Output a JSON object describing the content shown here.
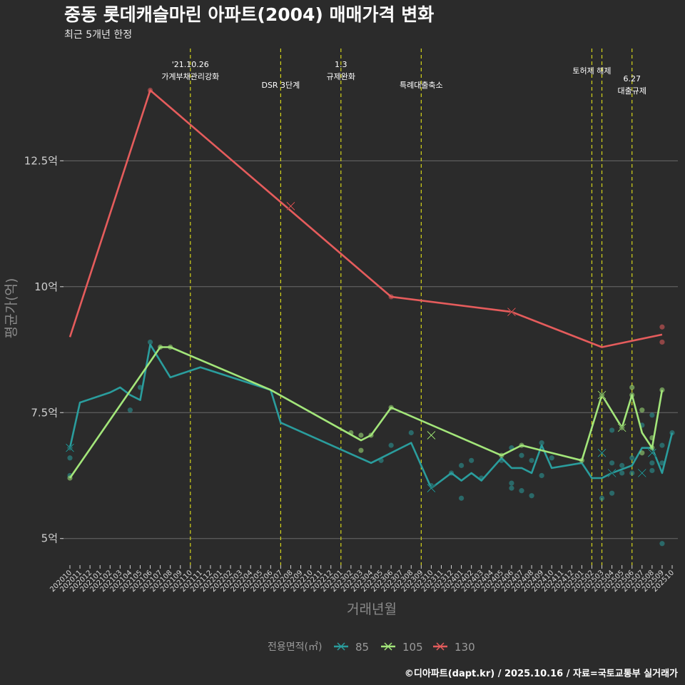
{
  "chart_data": {
    "type": "line",
    "title": "중동 롯데캐슬마린 아파트(2004) 매매가격 변화",
    "subtitle": "최근 5개년 한정",
    "xlabel": "거래년월",
    "ylabel": "평균가(억)",
    "ylim": [
      4.5,
      14.8
    ],
    "yticks": [
      {
        "value": 5,
        "label": "5억"
      },
      {
        "value": 7.5,
        "label": "7.5억"
      },
      {
        "value": 10,
        "label": "10억"
      },
      {
        "value": 12.5,
        "label": "12.5억"
      }
    ],
    "grid": true,
    "categories": [
      "202010",
      "202011",
      "202012",
      "202101",
      "202102",
      "202103",
      "202104",
      "202105",
      "202106",
      "202107",
      "202108",
      "202109",
      "202110",
      "202111",
      "202112",
      "202201",
      "202202",
      "202203",
      "202204",
      "202205",
      "202206",
      "202207",
      "202208",
      "202209",
      "202210",
      "202211",
      "202212",
      "202301",
      "202302",
      "202303",
      "202304",
      "202305",
      "202306",
      "202307",
      "202308",
      "202309",
      "202310",
      "202311",
      "202312",
      "202401",
      "202402",
      "202403",
      "202404",
      "202405",
      "202406",
      "202407",
      "202408",
      "202409",
      "202410",
      "202411",
      "202412",
      "202501",
      "202502",
      "202503",
      "202504",
      "202505",
      "202506",
      "202507",
      "202508",
      "202509",
      "202510"
    ],
    "events": [
      {
        "x": "202110",
        "label_lines": [
          "'21.10.26",
          "가계부채관리강화"
        ]
      },
      {
        "x": "202207",
        "label_lines": [
          "DSR 3단계"
        ]
      },
      {
        "x": "202301",
        "label_lines": [
          "1.3",
          "규제완화"
        ]
      },
      {
        "x": "202309",
        "label_lines": [
          "특례대출축소"
        ]
      },
      {
        "x": "202502",
        "label_lines": [
          "토허제 해제"
        ]
      },
      {
        "x": "202503",
        "label_lines": []
      },
      {
        "x": "202506",
        "label_lines": [
          "6.27",
          "대출규제"
        ]
      }
    ],
    "series": [
      {
        "name": "85",
        "color": "#2a9d9d",
        "line": [
          [
            "202010",
            6.8
          ],
          [
            "202011",
            7.7
          ],
          [
            "202102",
            7.9
          ],
          [
            "202103",
            8.0
          ],
          [
            "202104",
            7.85
          ],
          [
            "202105",
            7.75
          ],
          [
            "202106",
            8.85
          ],
          [
            "202108",
            8.2
          ],
          [
            "202111",
            8.4
          ],
          [
            "202206",
            7.95
          ],
          [
            "202207",
            7.3
          ],
          [
            "202304",
            6.5
          ],
          [
            "202305",
            6.6
          ],
          [
            "202308",
            6.9
          ],
          [
            "202309",
            6.45
          ],
          [
            "202310",
            6.0
          ],
          [
            "202312",
            6.3
          ],
          [
            "202401",
            6.15
          ],
          [
            "202402",
            6.3
          ],
          [
            "202403",
            6.15
          ],
          [
            "202405",
            6.6
          ],
          [
            "202406",
            6.4
          ],
          [
            "202407",
            6.4
          ],
          [
            "202408",
            6.3
          ],
          [
            "202409",
            6.85
          ],
          [
            "202410",
            6.4
          ],
          [
            "202501",
            6.5
          ],
          [
            "202502",
            6.2
          ],
          [
            "202503",
            6.2
          ],
          [
            "202504",
            6.3
          ],
          [
            "202506",
            6.45
          ],
          [
            "202507",
            6.8
          ],
          [
            "202508",
            6.8
          ],
          [
            "202509",
            6.3
          ],
          [
            "202510",
            7.1
          ]
        ],
        "points": [
          [
            "202010",
            6.6
          ],
          [
            "202010",
            6.25
          ],
          [
            "202010",
            6.8
          ],
          [
            "202104",
            7.55
          ],
          [
            "202105",
            8.0
          ],
          [
            "202106",
            8.9
          ],
          [
            "202305",
            6.55
          ],
          [
            "202306",
            6.85
          ],
          [
            "202308",
            7.1
          ],
          [
            "202310",
            6.05
          ],
          [
            "202312",
            6.3
          ],
          [
            "202401",
            5.8
          ],
          [
            "202401",
            6.45
          ],
          [
            "202402",
            6.55
          ],
          [
            "202403",
            6.2
          ],
          [
            "202405",
            6.55
          ],
          [
            "202406",
            6.0
          ],
          [
            "202406",
            6.1
          ],
          [
            "202406",
            6.8
          ],
          [
            "202407",
            6.65
          ],
          [
            "202407",
            5.95
          ],
          [
            "202408",
            6.55
          ],
          [
            "202408",
            5.85
          ],
          [
            "202409",
            6.9
          ],
          [
            "202409",
            6.25
          ],
          [
            "202410",
            6.6
          ],
          [
            "202503",
            5.8
          ],
          [
            "202504",
            7.15
          ],
          [
            "202504",
            5.9
          ],
          [
            "202504",
            6.5
          ],
          [
            "202505",
            6.45
          ],
          [
            "202505",
            6.3
          ],
          [
            "202506",
            6.3
          ],
          [
            "202506",
            6.6
          ],
          [
            "202507",
            7.25
          ],
          [
            "202508",
            7.45
          ],
          [
            "202508",
            6.5
          ],
          [
            "202508",
            6.35
          ],
          [
            "202509",
            6.85
          ],
          [
            "202509",
            6.5
          ],
          [
            "202509",
            4.9
          ],
          [
            "202510",
            7.1
          ]
        ],
        "crosses": [
          [
            "202010",
            6.8
          ],
          [
            "202310",
            6.0
          ],
          [
            "202503",
            6.7
          ],
          [
            "202504",
            6.3
          ],
          [
            "202507",
            6.3
          ],
          [
            "202508",
            6.7
          ]
        ]
      },
      {
        "name": "105",
        "color": "#a3e67a",
        "line": [
          [
            "202010",
            6.2
          ],
          [
            "202107",
            8.8
          ],
          [
            "202108",
            8.8
          ],
          [
            "202206",
            7.95
          ],
          [
            "202303",
            6.95
          ],
          [
            "202304",
            7.05
          ],
          [
            "202306",
            7.6
          ],
          [
            "202405",
            6.65
          ],
          [
            "202407",
            6.85
          ],
          [
            "202501",
            6.55
          ],
          [
            "202503",
            7.85
          ],
          [
            "202505",
            7.2
          ],
          [
            "202506",
            7.85
          ],
          [
            "202507",
            7.1
          ],
          [
            "202508",
            6.8
          ],
          [
            "202509",
            7.95
          ]
        ],
        "points": [
          [
            "202010",
            6.2
          ],
          [
            "202107",
            8.8
          ],
          [
            "202108",
            8.8
          ],
          [
            "202302",
            7.1
          ],
          [
            "202303",
            7.05
          ],
          [
            "202303",
            6.75
          ],
          [
            "202304",
            7.05
          ],
          [
            "202306",
            7.6
          ],
          [
            "202405",
            6.65
          ],
          [
            "202407",
            6.85
          ],
          [
            "202501",
            6.55
          ],
          [
            "202503",
            7.85
          ],
          [
            "202505",
            7.2
          ],
          [
            "202506",
            8.0
          ],
          [
            "202506",
            7.85
          ],
          [
            "202507",
            7.55
          ],
          [
            "202507",
            6.7
          ],
          [
            "202508",
            6.8
          ],
          [
            "202508",
            7.0
          ],
          [
            "202509",
            7.95
          ]
        ],
        "crosses": [
          [
            "202310",
            7.05
          ],
          [
            "202503",
            7.85
          ],
          [
            "202505",
            7.2
          ]
        ]
      },
      {
        "name": "130",
        "color": "#e55c5c",
        "line": [
          [
            "202010",
            9.0
          ],
          [
            "202106",
            13.9
          ],
          [
            "202306",
            9.8
          ],
          [
            "202406",
            9.5
          ],
          [
            "202503",
            8.8
          ],
          [
            "202509",
            9.05
          ]
        ],
        "points": [
          [
            "202106",
            13.9
          ],
          [
            "202306",
            9.8
          ],
          [
            "202509",
            9.2
          ],
          [
            "202509",
            8.9
          ]
        ],
        "crosses": [
          [
            "202208",
            11.6
          ],
          [
            "202406",
            9.5
          ]
        ]
      }
    ],
    "legend": {
      "title": "전용면적(㎡)",
      "position": "bottom"
    },
    "caption": "©디아파트(dapt.kr) / 2025.10.16 / 자료=국토교통부 실거래가"
  }
}
